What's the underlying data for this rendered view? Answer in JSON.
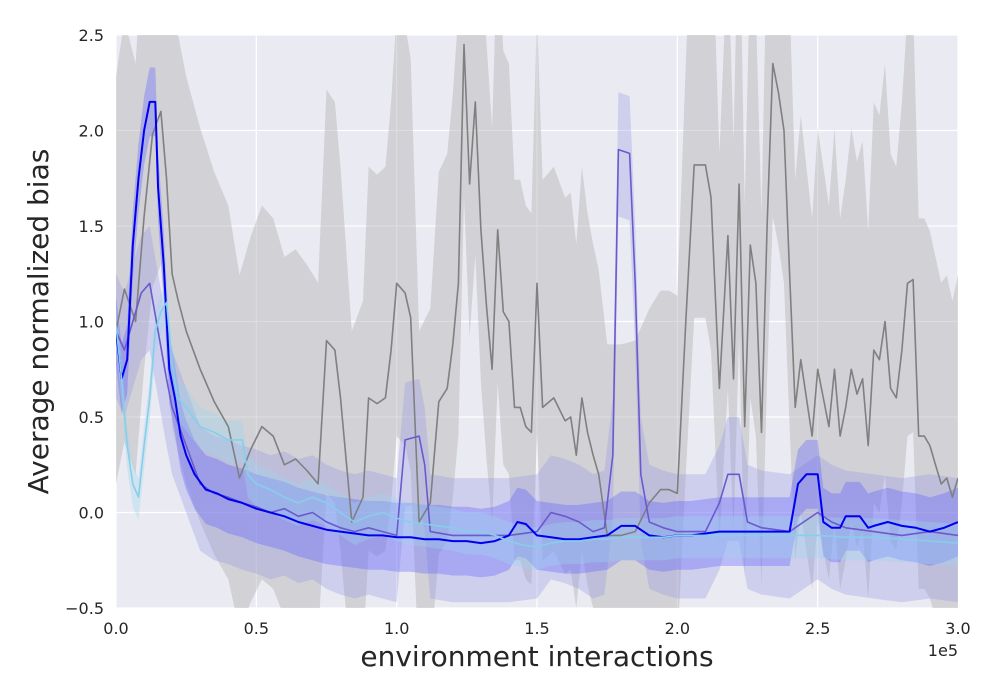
{
  "chart_data": {
    "type": "line",
    "xlabel": "environment interactions",
    "ylabel": "Average normalized bias",
    "x_offset_label": "1e5",
    "xlim": [
      0,
      3.0
    ],
    "ylim": [
      -0.5,
      2.5
    ],
    "x_ticks": [
      "0.0",
      "0.5",
      "1.0",
      "1.5",
      "2.0",
      "2.5",
      "3.0"
    ],
    "x_tick_values": [
      0,
      0.5,
      1.0,
      1.5,
      2.0,
      2.5,
      3.0
    ],
    "y_ticks": [
      "−0.5",
      "0.0",
      "0.5",
      "1.0",
      "1.5",
      "2.0",
      "2.5"
    ],
    "y_tick_values": [
      -0.5,
      0,
      0.5,
      1.0,
      1.5,
      2.0,
      2.5
    ],
    "grid": true,
    "legend": "none",
    "series": [
      {
        "color": "#808080",
        "band_color": "#b4b4b4",
        "points": [
          [
            0,
            0.95
          ],
          [
            0.03,
            1.17
          ],
          [
            0.07,
            1.0
          ],
          [
            0.1,
            1.55
          ],
          [
            0.13,
            1.98
          ],
          [
            0.16,
            2.1
          ],
          [
            0.18,
            1.75
          ],
          [
            0.2,
            1.25
          ],
          [
            0.22,
            1.12
          ],
          [
            0.25,
            0.95
          ],
          [
            0.3,
            0.75
          ],
          [
            0.35,
            0.58
          ],
          [
            0.4,
            0.45
          ],
          [
            0.44,
            0.18
          ],
          [
            0.48,
            0.33
          ],
          [
            0.52,
            0.45
          ],
          [
            0.56,
            0.4
          ],
          [
            0.6,
            0.25
          ],
          [
            0.64,
            0.28
          ],
          [
            0.68,
            0.22
          ],
          [
            0.72,
            0.15
          ],
          [
            0.75,
            0.9
          ],
          [
            0.78,
            0.85
          ],
          [
            0.8,
            0.6
          ],
          [
            0.84,
            -0.05
          ],
          [
            0.88,
            0.08
          ],
          [
            0.9,
            0.6
          ],
          [
            0.93,
            0.57
          ],
          [
            0.96,
            0.6
          ],
          [
            0.98,
            0.85
          ],
          [
            1.0,
            1.2
          ],
          [
            1.03,
            1.15
          ],
          [
            1.05,
            1.02
          ],
          [
            1.08,
            -0.05
          ],
          [
            1.12,
            0.05
          ],
          [
            1.15,
            0.58
          ],
          [
            1.18,
            0.65
          ],
          [
            1.2,
            0.88
          ],
          [
            1.22,
            1.2
          ],
          [
            1.24,
            2.45
          ],
          [
            1.26,
            1.72
          ],
          [
            1.28,
            2.15
          ],
          [
            1.3,
            1.48
          ],
          [
            1.32,
            1.08
          ],
          [
            1.34,
            0.75
          ],
          [
            1.36,
            1.48
          ],
          [
            1.38,
            1.05
          ],
          [
            1.4,
            1.0
          ],
          [
            1.42,
            0.55
          ],
          [
            1.44,
            0.55
          ],
          [
            1.46,
            0.45
          ],
          [
            1.48,
            0.42
          ],
          [
            1.5,
            1.2
          ],
          [
            1.52,
            0.55
          ],
          [
            1.56,
            0.6
          ],
          [
            1.6,
            0.48
          ],
          [
            1.62,
            0.5
          ],
          [
            1.64,
            0.3
          ],
          [
            1.66,
            0.6
          ],
          [
            1.68,
            0.42
          ],
          [
            1.7,
            0.3
          ],
          [
            1.72,
            0.2
          ],
          [
            1.75,
            -0.12
          ],
          [
            1.8,
            -0.12
          ],
          [
            1.85,
            -0.1
          ],
          [
            1.9,
            0.05
          ],
          [
            1.94,
            0.12
          ],
          [
            1.97,
            0.12
          ],
          [
            2.0,
            0.1
          ],
          [
            2.03,
            1.0
          ],
          [
            2.06,
            1.82
          ],
          [
            2.1,
            1.82
          ],
          [
            2.12,
            1.65
          ],
          [
            2.15,
            0.65
          ],
          [
            2.18,
            1.45
          ],
          [
            2.2,
            0.7
          ],
          [
            2.22,
            1.72
          ],
          [
            2.24,
            0.45
          ],
          [
            2.26,
            1.4
          ],
          [
            2.28,
            1.2
          ],
          [
            2.3,
            0.42
          ],
          [
            2.32,
            1.5
          ],
          [
            2.34,
            2.35
          ],
          [
            2.36,
            2.2
          ],
          [
            2.38,
            2.0
          ],
          [
            2.4,
            1.25
          ],
          [
            2.42,
            0.55
          ],
          [
            2.44,
            0.8
          ],
          [
            2.46,
            0.6
          ],
          [
            2.48,
            0.4
          ],
          [
            2.5,
            0.75
          ],
          [
            2.52,
            0.6
          ],
          [
            2.54,
            0.45
          ],
          [
            2.56,
            0.75
          ],
          [
            2.58,
            0.4
          ],
          [
            2.6,
            0.55
          ],
          [
            2.62,
            0.75
          ],
          [
            2.64,
            0.62
          ],
          [
            2.66,
            0.7
          ],
          [
            2.68,
            0.35
          ],
          [
            2.7,
            0.85
          ],
          [
            2.72,
            0.8
          ],
          [
            2.74,
            1.0
          ],
          [
            2.76,
            0.65
          ],
          [
            2.78,
            0.6
          ],
          [
            2.8,
            0.85
          ],
          [
            2.82,
            1.2
          ],
          [
            2.84,
            1.22
          ],
          [
            2.86,
            0.4
          ],
          [
            2.88,
            0.4
          ],
          [
            2.9,
            0.35
          ],
          [
            2.92,
            0.25
          ],
          [
            2.94,
            0.15
          ],
          [
            2.96,
            0.18
          ],
          [
            2.98,
            0.08
          ],
          [
            3.0,
            0.18
          ]
        ],
        "band": [
          0.8,
          1.0
        ]
      },
      {
        "color": "#6a5acd",
        "band_color": "#9b9be6",
        "points": [
          [
            0,
            0.95
          ],
          [
            0.03,
            0.85
          ],
          [
            0.06,
            1.0
          ],
          [
            0.09,
            1.15
          ],
          [
            0.12,
            1.2
          ],
          [
            0.15,
            0.95
          ],
          [
            0.18,
            0.7
          ],
          [
            0.2,
            0.55
          ],
          [
            0.25,
            0.35
          ],
          [
            0.3,
            0.15
          ],
          [
            0.35,
            0.1
          ],
          [
            0.4,
            0.08
          ],
          [
            0.45,
            0.05
          ],
          [
            0.5,
            0.03
          ],
          [
            0.55,
            0.0
          ],
          [
            0.6,
            0.02
          ],
          [
            0.65,
            -0.02
          ],
          [
            0.7,
            0.0
          ],
          [
            0.75,
            -0.05
          ],
          [
            0.8,
            -0.08
          ],
          [
            0.85,
            -0.1
          ],
          [
            0.9,
            -0.08
          ],
          [
            0.95,
            -0.1
          ],
          [
            1.0,
            -0.12
          ],
          [
            1.03,
            0.38
          ],
          [
            1.08,
            0.4
          ],
          [
            1.1,
            0.25
          ],
          [
            1.12,
            -0.1
          ],
          [
            1.2,
            -0.12
          ],
          [
            1.3,
            -0.12
          ],
          [
            1.4,
            -0.12
          ],
          [
            1.5,
            -0.1
          ],
          [
            1.55,
            0.0
          ],
          [
            1.6,
            -0.02
          ],
          [
            1.65,
            -0.05
          ],
          [
            1.7,
            -0.1
          ],
          [
            1.74,
            -0.08
          ],
          [
            1.77,
            0.3
          ],
          [
            1.79,
            1.9
          ],
          [
            1.83,
            1.88
          ],
          [
            1.85,
            1.2
          ],
          [
            1.87,
            0.2
          ],
          [
            1.9,
            -0.05
          ],
          [
            1.95,
            -0.08
          ],
          [
            2.0,
            -0.1
          ],
          [
            2.05,
            -0.1
          ],
          [
            2.1,
            -0.1
          ],
          [
            2.15,
            0.05
          ],
          [
            2.18,
            0.2
          ],
          [
            2.22,
            0.2
          ],
          [
            2.25,
            -0.05
          ],
          [
            2.3,
            -0.08
          ],
          [
            2.4,
            -0.1
          ],
          [
            2.45,
            -0.05
          ],
          [
            2.5,
            0.0
          ],
          [
            2.55,
            -0.05
          ],
          [
            2.6,
            -0.08
          ],
          [
            2.7,
            -0.1
          ],
          [
            2.8,
            -0.12
          ],
          [
            2.9,
            -0.1
          ],
          [
            3.0,
            -0.12
          ]
        ],
        "band": [
          0.35,
          0.3
        ]
      },
      {
        "color": "#0000ee",
        "band_color": "#6060ff",
        "points": [
          [
            0,
            0.95
          ],
          [
            0.02,
            0.7
          ],
          [
            0.04,
            0.8
          ],
          [
            0.06,
            1.4
          ],
          [
            0.08,
            1.75
          ],
          [
            0.1,
            2.0
          ],
          [
            0.12,
            2.15
          ],
          [
            0.14,
            2.15
          ],
          [
            0.15,
            1.7
          ],
          [
            0.17,
            1.3
          ],
          [
            0.19,
            0.75
          ],
          [
            0.21,
            0.6
          ],
          [
            0.23,
            0.4
          ],
          [
            0.25,
            0.3
          ],
          [
            0.28,
            0.2
          ],
          [
            0.32,
            0.12
          ],
          [
            0.36,
            0.1
          ],
          [
            0.4,
            0.07
          ],
          [
            0.45,
            0.05
          ],
          [
            0.5,
            0.02
          ],
          [
            0.55,
            0.0
          ],
          [
            0.6,
            -0.02
          ],
          [
            0.65,
            -0.05
          ],
          [
            0.7,
            -0.07
          ],
          [
            0.75,
            -0.09
          ],
          [
            0.8,
            -0.1
          ],
          [
            0.85,
            -0.11
          ],
          [
            0.9,
            -0.12
          ],
          [
            0.95,
            -0.12
          ],
          [
            1.0,
            -0.13
          ],
          [
            1.05,
            -0.13
          ],
          [
            1.1,
            -0.14
          ],
          [
            1.15,
            -0.14
          ],
          [
            1.2,
            -0.15
          ],
          [
            1.25,
            -0.15
          ],
          [
            1.3,
            -0.16
          ],
          [
            1.35,
            -0.15
          ],
          [
            1.4,
            -0.12
          ],
          [
            1.43,
            -0.05
          ],
          [
            1.46,
            -0.06
          ],
          [
            1.5,
            -0.12
          ],
          [
            1.55,
            -0.13
          ],
          [
            1.6,
            -0.14
          ],
          [
            1.65,
            -0.14
          ],
          [
            1.7,
            -0.13
          ],
          [
            1.75,
            -0.12
          ],
          [
            1.8,
            -0.07
          ],
          [
            1.85,
            -0.07
          ],
          [
            1.9,
            -0.12
          ],
          [
            1.95,
            -0.13
          ],
          [
            2.0,
            -0.12
          ],
          [
            2.05,
            -0.12
          ],
          [
            2.1,
            -0.11
          ],
          [
            2.15,
            -0.1
          ],
          [
            2.2,
            -0.1
          ],
          [
            2.25,
            -0.1
          ],
          [
            2.3,
            -0.1
          ],
          [
            2.35,
            -0.1
          ],
          [
            2.4,
            -0.1
          ],
          [
            2.43,
            0.15
          ],
          [
            2.46,
            0.2
          ],
          [
            2.5,
            0.2
          ],
          [
            2.52,
            -0.05
          ],
          [
            2.55,
            -0.08
          ],
          [
            2.58,
            -0.08
          ],
          [
            2.6,
            -0.02
          ],
          [
            2.65,
            -0.02
          ],
          [
            2.68,
            -0.08
          ],
          [
            2.7,
            -0.07
          ],
          [
            2.75,
            -0.05
          ],
          [
            2.8,
            -0.07
          ],
          [
            2.85,
            -0.08
          ],
          [
            2.9,
            -0.1
          ],
          [
            2.95,
            -0.08
          ],
          [
            3.0,
            -0.05
          ]
        ],
        "band": [
          0.18,
          0.18
        ]
      },
      {
        "color": "#87ceeb",
        "band_color": "#9fd8ee",
        "points": [
          [
            0,
            0.98
          ],
          [
            0.02,
            0.7
          ],
          [
            0.04,
            0.35
          ],
          [
            0.06,
            0.15
          ],
          [
            0.08,
            0.08
          ],
          [
            0.1,
            0.35
          ],
          [
            0.12,
            0.6
          ],
          [
            0.14,
            0.95
          ],
          [
            0.16,
            1.05
          ],
          [
            0.18,
            1.1
          ],
          [
            0.2,
            0.78
          ],
          [
            0.22,
            0.6
          ],
          [
            0.25,
            0.55
          ],
          [
            0.3,
            0.45
          ],
          [
            0.35,
            0.42
          ],
          [
            0.4,
            0.38
          ],
          [
            0.45,
            0.38
          ],
          [
            0.47,
            0.2
          ],
          [
            0.5,
            0.15
          ],
          [
            0.55,
            0.12
          ],
          [
            0.6,
            0.08
          ],
          [
            0.65,
            0.05
          ],
          [
            0.7,
            0.08
          ],
          [
            0.75,
            0.05
          ],
          [
            0.8,
            0.0
          ],
          [
            0.85,
            -0.05
          ],
          [
            0.9,
            -0.02
          ],
          [
            0.95,
            0.0
          ],
          [
            1.0,
            -0.03
          ],
          [
            1.05,
            -0.05
          ],
          [
            1.1,
            -0.06
          ],
          [
            1.15,
            -0.07
          ],
          [
            1.2,
            -0.08
          ],
          [
            1.25,
            -0.1
          ],
          [
            1.3,
            -0.1
          ],
          [
            1.35,
            -0.12
          ],
          [
            1.4,
            -0.15
          ],
          [
            1.45,
            -0.17
          ],
          [
            1.5,
            -0.18
          ],
          [
            1.55,
            -0.16
          ],
          [
            1.6,
            -0.15
          ],
          [
            1.65,
            -0.15
          ],
          [
            1.7,
            -0.14
          ],
          [
            1.75,
            -0.14
          ],
          [
            1.8,
            -0.13
          ],
          [
            1.85,
            -0.13
          ],
          [
            1.9,
            -0.13
          ],
          [
            1.95,
            -0.13
          ],
          [
            2.0,
            -0.12
          ],
          [
            2.1,
            -0.12
          ],
          [
            2.2,
            -0.12
          ],
          [
            2.3,
            -0.12
          ],
          [
            2.4,
            -0.12
          ],
          [
            2.5,
            -0.12
          ],
          [
            2.6,
            -0.13
          ],
          [
            2.7,
            -0.13
          ],
          [
            2.8,
            -0.14
          ],
          [
            2.9,
            -0.15
          ],
          [
            3.0,
            -0.16
          ]
        ],
        "band": [
          0.12,
          0.1
        ]
      }
    ]
  }
}
